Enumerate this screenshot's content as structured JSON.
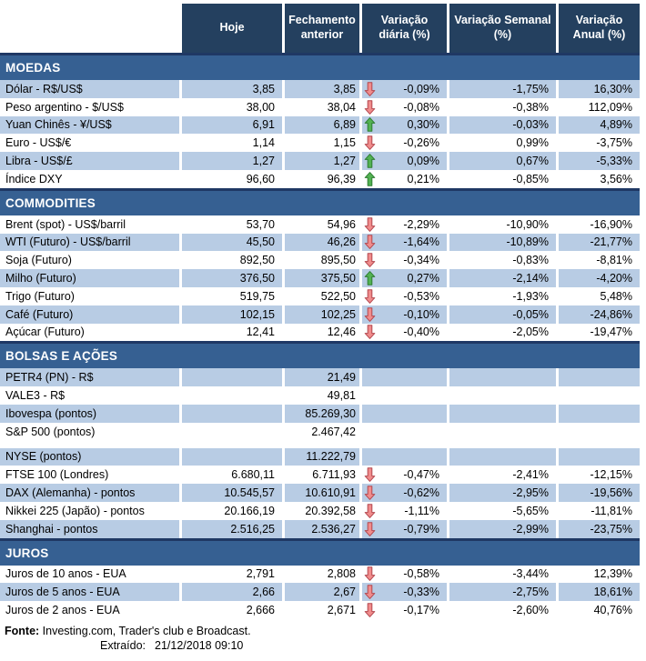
{
  "table": {
    "columns": [
      "Hoje",
      "Fechamento anterior",
      "Variação diária (%)",
      "Variação Semanal (%)",
      "Variação Anual (%)"
    ],
    "sections": [
      {
        "title": "MOEDAS",
        "rows": [
          {
            "label": "Dólar - R$/US$",
            "hoje": "3,85",
            "fechamento": "3,85",
            "arrow": "down",
            "diaria": "-0,09%",
            "semanal": "-1,75%",
            "anual": "16,30%",
            "shaded": true
          },
          {
            "label": "Peso argentino - $/US$",
            "hoje": "38,00",
            "fechamento": "38,04",
            "arrow": "down",
            "diaria": "-0,08%",
            "semanal": "-0,38%",
            "anual": "112,09%",
            "shaded": false
          },
          {
            "label": "Yuan Chinês - ¥/US$",
            "hoje": "6,91",
            "fechamento": "6,89",
            "arrow": "up",
            "diaria": "0,30%",
            "semanal": "-0,03%",
            "anual": "4,89%",
            "shaded": true
          },
          {
            "label": "Euro - US$/€",
            "hoje": "1,14",
            "fechamento": "1,15",
            "arrow": "down",
            "diaria": "-0,26%",
            "semanal": "0,99%",
            "anual": "-3,75%",
            "shaded": false
          },
          {
            "label": "Libra - US$/£",
            "hoje": "1,27",
            "fechamento": "1,27",
            "arrow": "up",
            "diaria": "0,09%",
            "semanal": "0,67%",
            "anual": "-5,33%",
            "shaded": true
          },
          {
            "label": "Índice DXY",
            "hoje": "96,60",
            "fechamento": "96,39",
            "arrow": "up",
            "diaria": "0,21%",
            "semanal": "-0,85%",
            "anual": "3,56%",
            "shaded": false
          }
        ]
      },
      {
        "title": "COMMODITIES",
        "rows": [
          {
            "label": "Brent (spot) - US$/barril",
            "hoje": "53,70",
            "fechamento": "54,96",
            "arrow": "down",
            "diaria": "-2,29%",
            "semanal": "-10,90%",
            "anual": "-16,90%",
            "shaded": false
          },
          {
            "label": "WTI (Futuro) - US$/barril",
            "hoje": "45,50",
            "fechamento": "46,26",
            "arrow": "down",
            "diaria": "-1,64%",
            "semanal": "-10,89%",
            "anual": "-21,77%",
            "shaded": true
          },
          {
            "label": "Soja (Futuro)",
            "hoje": "892,50",
            "fechamento": "895,50",
            "arrow": "down",
            "diaria": "-0,34%",
            "semanal": "-0,83%",
            "anual": "-8,81%",
            "shaded": false
          },
          {
            "label": "Milho (Futuro)",
            "hoje": "376,50",
            "fechamento": "375,50",
            "arrow": "up",
            "diaria": "0,27%",
            "semanal": "-2,14%",
            "anual": "-4,20%",
            "shaded": true
          },
          {
            "label": "Trigo (Futuro)",
            "hoje": "519,75",
            "fechamento": "522,50",
            "arrow": "down",
            "diaria": "-0,53%",
            "semanal": "-1,93%",
            "anual": "5,48%",
            "shaded": false
          },
          {
            "label": "Café (Futuro)",
            "hoje": "102,15",
            "fechamento": "102,25",
            "arrow": "down",
            "diaria": "-0,10%",
            "semanal": "-0,05%",
            "anual": "-24,86%",
            "shaded": true
          },
          {
            "label": "Açúcar (Futuro)",
            "hoje": "12,41",
            "fechamento": "12,46",
            "arrow": "down",
            "diaria": "-0,40%",
            "semanal": "-2,05%",
            "anual": "-19,47%",
            "shaded": false
          }
        ]
      },
      {
        "title": "BOLSAS E AÇÕES",
        "rows": [
          {
            "label": "PETR4 (PN) - R$",
            "hoje": "",
            "fechamento": "21,49",
            "arrow": "",
            "diaria": "",
            "semanal": "",
            "anual": "",
            "shaded": true
          },
          {
            "label": "VALE3 - R$",
            "hoje": "",
            "fechamento": "49,81",
            "arrow": "",
            "diaria": "",
            "semanal": "",
            "anual": "",
            "shaded": false
          },
          {
            "label": "Ibovespa (pontos)",
            "hoje": "",
            "fechamento": "85.269,30",
            "arrow": "",
            "diaria": "",
            "semanal": "",
            "anual": "",
            "shaded": true
          },
          {
            "label": "S&P 500 (pontos)",
            "hoje": "",
            "fechamento": "2.467,42",
            "arrow": "",
            "diaria": "",
            "semanal": "",
            "anual": "",
            "shaded": false
          },
          {
            "label": "NYSE (pontos)",
            "hoje": "",
            "fechamento": "11.222,79",
            "arrow": "",
            "diaria": "",
            "semanal": "",
            "anual": "",
            "shaded": true,
            "gap_before": true
          },
          {
            "label": "FTSE 100 (Londres)",
            "hoje": "6.680,11",
            "fechamento": "6.711,93",
            "arrow": "down",
            "diaria": "-0,47%",
            "semanal": "-2,41%",
            "anual": "-12,15%",
            "shaded": false
          },
          {
            "label": "DAX (Alemanha) - pontos",
            "hoje": "10.545,57",
            "fechamento": "10.610,91",
            "arrow": "down",
            "diaria": "-0,62%",
            "semanal": "-2,95%",
            "anual": "-19,56%",
            "shaded": true
          },
          {
            "label": "Nikkei 225 (Japão) - pontos",
            "hoje": "20.166,19",
            "fechamento": "20.392,58",
            "arrow": "down",
            "diaria": "-1,11%",
            "semanal": "-5,65%",
            "anual": "-11,81%",
            "shaded": false
          },
          {
            "label": "Shanghai - pontos",
            "hoje": "2.516,25",
            "fechamento": "2.536,27",
            "arrow": "down",
            "diaria": "-0,79%",
            "semanal": "-2,99%",
            "anual": "-23,75%",
            "shaded": true
          }
        ]
      },
      {
        "title": "JUROS",
        "rows": [
          {
            "label": "Juros de 10 anos - EUA",
            "hoje": "2,791",
            "fechamento": "2,808",
            "arrow": "down",
            "diaria": "-0,58%",
            "semanal": "-3,44%",
            "anual": "12,39%",
            "shaded": false
          },
          {
            "label": "Juros de 5 anos - EUA",
            "hoje": "2,66",
            "fechamento": "2,67",
            "arrow": "down",
            "diaria": "-0,33%",
            "semanal": "-2,75%",
            "anual": "18,61%",
            "shaded": true
          },
          {
            "label": "Juros de 2 anos - EUA",
            "hoje": "2,666",
            "fechamento": "2,671",
            "arrow": "down",
            "diaria": "-0,17%",
            "semanal": "-2,60%",
            "anual": "40,76%",
            "shaded": false
          }
        ]
      }
    ]
  },
  "footer": {
    "fonte_label": "Fonte:",
    "fonte_text": " Investing.com, Trader's club e Broadcast.",
    "extraido_label": "Extraído:",
    "extraido_value": "21/12/2018 09:10"
  },
  "colors": {
    "header_bg": "#24405F",
    "section_bg": "#366092",
    "section_border": "#1F3864",
    "band": "#B8CCE4",
    "up_fill": "#53B253",
    "up_stroke": "#2E7D32",
    "down_fill": "#F08C8C",
    "down_stroke": "#B3474E"
  }
}
